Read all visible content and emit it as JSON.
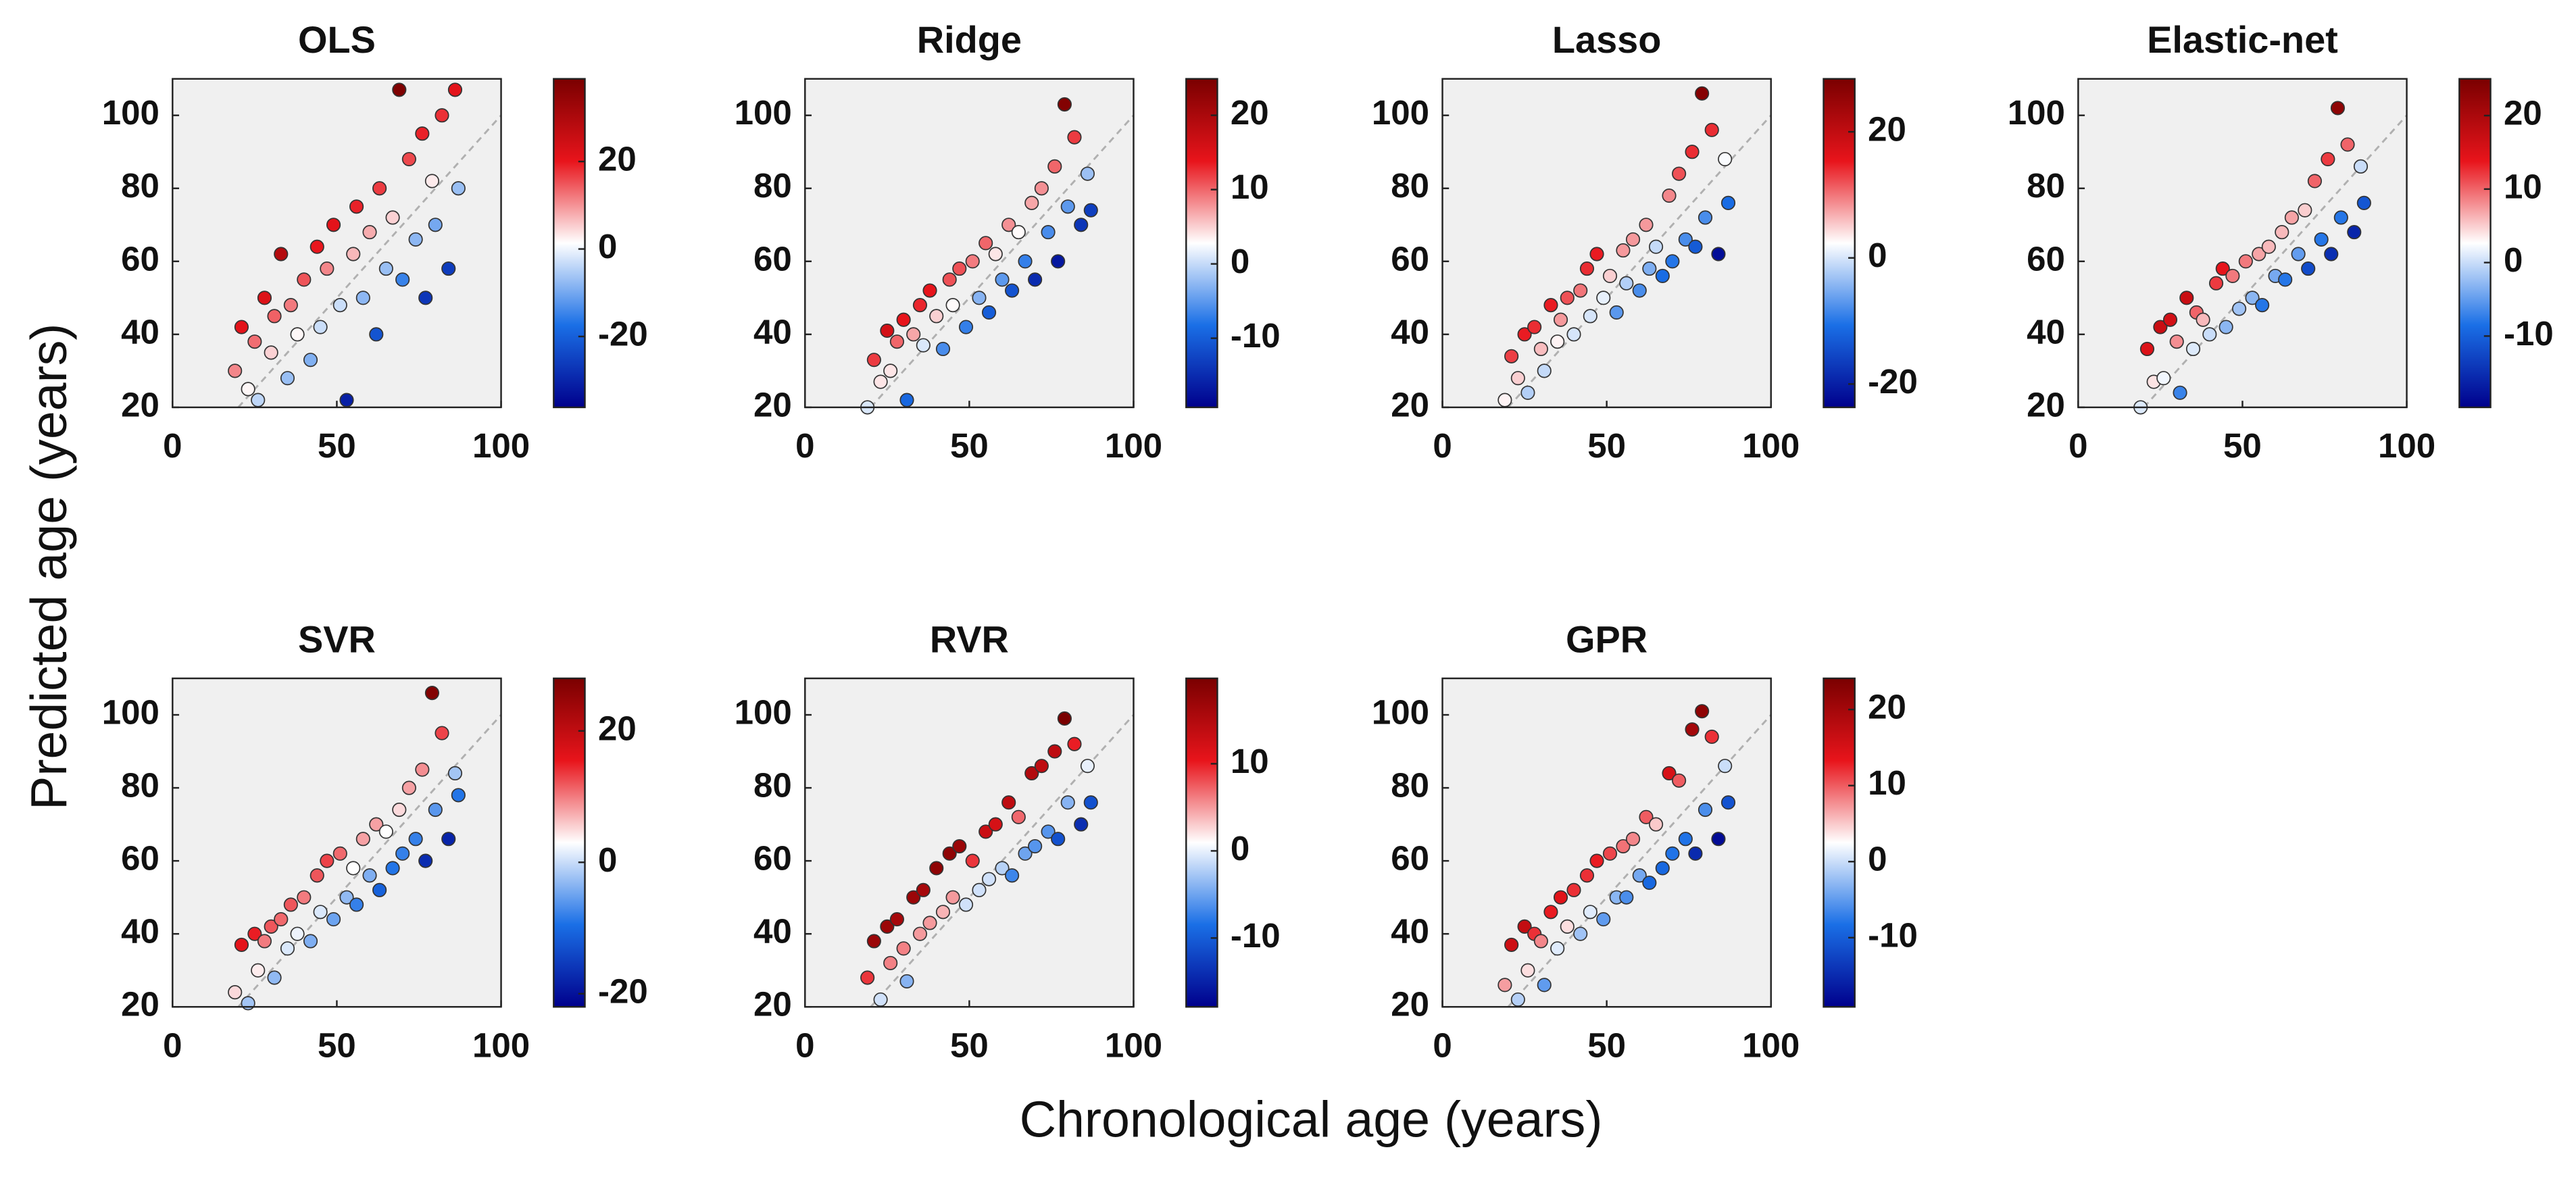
{
  "figure": {
    "ylabel": "Predicted age (years)",
    "xlabel": "Chronological age (years)"
  },
  "chart_data": [
    {
      "type": "scatter",
      "title": "OLS",
      "x": [
        19,
        21,
        23,
        25,
        26,
        28,
        30,
        31,
        33,
        35,
        36,
        38,
        40,
        42,
        44,
        45,
        47,
        49,
        51,
        53,
        55,
        56,
        58,
        60,
        62,
        63,
        65,
        67,
        69,
        70,
        72,
        74,
        76,
        77,
        79,
        80,
        82,
        84,
        86,
        87
      ],
      "values": [
        30,
        42,
        25,
        38,
        22,
        50,
        35,
        45,
        62,
        28,
        48,
        40,
        55,
        33,
        64,
        42,
        58,
        70,
        48,
        22,
        62,
        75,
        50,
        68,
        40,
        80,
        58,
        72,
        107,
        55,
        88,
        66,
        95,
        50,
        82,
        70,
        100,
        58,
        107,
        80
      ],
      "xlim": [
        0,
        100
      ],
      "ylim": [
        20,
        110
      ],
      "xticks": [
        0,
        50,
        100
      ],
      "yticks": [
        20,
        40,
        60,
        80,
        100
      ],
      "clim": [
        -36.2,
        38.9
      ],
      "cticks": [
        -20,
        0,
        20
      ],
      "colormap": [
        "#00008c",
        "#1a6fe6",
        "#ffffff",
        "#e8141b",
        "#7a0000"
      ],
      "identity_line": true
    },
    {
      "type": "scatter",
      "title": "Ridge",
      "x": [
        19,
        21,
        23,
        25,
        26,
        28,
        30,
        31,
        33,
        35,
        36,
        38,
        40,
        42,
        44,
        45,
        47,
        49,
        51,
        53,
        55,
        56,
        58,
        60,
        62,
        63,
        65,
        67,
        69,
        70,
        72,
        74,
        76,
        77,
        79,
        80,
        82,
        84,
        86,
        87
      ],
      "values": [
        20,
        33,
        27,
        41,
        30,
        38,
        44,
        22,
        40,
        48,
        37,
        52,
        45,
        36,
        55,
        48,
        58,
        42,
        60,
        50,
        65,
        46,
        62,
        55,
        70,
        52,
        68,
        60,
        76,
        55,
        80,
        68,
        86,
        60,
        103,
        75,
        94,
        70,
        84,
        74
      ],
      "xlim": [
        0,
        100
      ],
      "ylim": [
        20,
        110
      ],
      "xticks": [
        0,
        50,
        100
      ],
      "yticks": [
        20,
        40,
        60,
        80,
        100
      ],
      "clim": [
        -19.3,
        24.9
      ],
      "cticks": [
        -10,
        0,
        10,
        20
      ],
      "colormap": [
        "#00008c",
        "#1a6fe6",
        "#ffffff",
        "#e8141b",
        "#7a0000"
      ],
      "identity_line": true
    },
    {
      "type": "scatter",
      "title": "Lasso",
      "x": [
        19,
        21,
        23,
        25,
        26,
        28,
        30,
        31,
        33,
        35,
        36,
        38,
        40,
        42,
        44,
        45,
        47,
        49,
        51,
        53,
        55,
        56,
        58,
        60,
        62,
        63,
        65,
        67,
        69,
        70,
        72,
        74,
        76,
        77,
        79,
        80,
        82,
        84,
        86,
        87
      ],
      "values": [
        22,
        34,
        28,
        40,
        24,
        42,
        36,
        30,
        48,
        38,
        44,
        50,
        40,
        52,
        58,
        45,
        62,
        50,
        56,
        46,
        63,
        54,
        66,
        52,
        70,
        58,
        64,
        56,
        78,
        60,
        84,
        66,
        90,
        64,
        106,
        72,
        96,
        62,
        88,
        76
      ],
      "xlim": [
        0,
        100
      ],
      "ylim": [
        20,
        110
      ],
      "xticks": [
        0,
        50,
        100
      ],
      "yticks": [
        20,
        40,
        60,
        80,
        100
      ],
      "clim": [
        -23.7,
        28.4
      ],
      "cticks": [
        -20,
        0,
        20
      ],
      "colormap": [
        "#00008c",
        "#1a6fe6",
        "#ffffff",
        "#e8141b",
        "#7a0000"
      ],
      "identity_line": true
    },
    {
      "type": "scatter",
      "title": "Elastic-net",
      "x": [
        19,
        21,
        23,
        25,
        26,
        28,
        30,
        31,
        33,
        35,
        36,
        38,
        40,
        42,
        44,
        45,
        47,
        49,
        51,
        53,
        55,
        56,
        58,
        60,
        62,
        63,
        65,
        67,
        69,
        70,
        72,
        74,
        76,
        77,
        79,
        80,
        82,
        84,
        86,
        87
      ],
      "values": [
        20,
        36,
        27,
        42,
        28,
        44,
        38,
        24,
        50,
        36,
        46,
        44,
        40,
        54,
        58,
        42,
        56,
        47,
        60,
        50,
        62,
        48,
        64,
        56,
        68,
        55,
        72,
        62,
        74,
        58,
        82,
        66,
        88,
        62,
        102,
        72,
        92,
        68,
        86,
        76
      ],
      "xlim": [
        0,
        100
      ],
      "ylim": [
        20,
        110
      ],
      "xticks": [
        0,
        50,
        100
      ],
      "yticks": [
        20,
        40,
        60,
        80,
        100
      ],
      "clim": [
        -19.7,
        25
      ],
      "cticks": [
        -10,
        0,
        10,
        20
      ],
      "colormap": [
        "#00008c",
        "#1a6fe6",
        "#ffffff",
        "#e8141b",
        "#7a0000"
      ],
      "identity_line": true
    },
    {
      "type": "scatter",
      "title": "SVR",
      "x": [
        19,
        21,
        23,
        25,
        26,
        28,
        30,
        31,
        33,
        35,
        36,
        38,
        40,
        42,
        44,
        45,
        47,
        49,
        51,
        53,
        55,
        56,
        58,
        60,
        62,
        63,
        65,
        67,
        69,
        70,
        72,
        74,
        76,
        77,
        79,
        80,
        82,
        84,
        86,
        87
      ],
      "values": [
        24,
        37,
        21,
        40,
        30,
        38,
        42,
        28,
        44,
        36,
        48,
        40,
        50,
        38,
        56,
        46,
        60,
        44,
        62,
        50,
        58,
        48,
        66,
        56,
        70,
        52,
        68,
        58,
        74,
        62,
        80,
        66,
        85,
        60,
        106,
        74,
        95,
        66,
        84,
        78
      ],
      "xlim": [
        0,
        100
      ],
      "ylim": [
        20,
        110
      ],
      "xticks": [
        0,
        50,
        100
      ],
      "yticks": [
        20,
        40,
        60,
        80,
        100
      ],
      "clim": [
        -22,
        28
      ],
      "cticks": [
        -20,
        0,
        20
      ],
      "colormap": [
        "#00008c",
        "#1a6fe6",
        "#ffffff",
        "#e8141b",
        "#7a0000"
      ],
      "identity_line": true
    },
    {
      "type": "scatter",
      "title": "RVR",
      "x": [
        19,
        21,
        23,
        25,
        26,
        28,
        30,
        31,
        33,
        35,
        36,
        38,
        40,
        42,
        44,
        45,
        47,
        49,
        51,
        53,
        55,
        56,
        58,
        60,
        62,
        63,
        65,
        67,
        69,
        70,
        72,
        74,
        76,
        77,
        79,
        80,
        82,
        84,
        86,
        87
      ],
      "values": [
        28,
        38,
        22,
        42,
        32,
        44,
        36,
        27,
        50,
        40,
        52,
        43,
        58,
        46,
        62,
        50,
        64,
        48,
        60,
        52,
        68,
        55,
        70,
        58,
        76,
        56,
        72,
        62,
        84,
        64,
        86,
        68,
        90,
        66,
        99,
        76,
        92,
        70,
        86,
        76
      ],
      "xlim": [
        0,
        100
      ],
      "ylim": [
        20,
        110
      ],
      "xticks": [
        0,
        50,
        100
      ],
      "yticks": [
        20,
        40,
        60,
        80,
        100
      ],
      "clim": [
        -17.9,
        19.8
      ],
      "cticks": [
        -10,
        0,
        10
      ],
      "colormap": [
        "#00008c",
        "#1a6fe6",
        "#ffffff",
        "#e8141b",
        "#7a0000"
      ],
      "identity_line": true
    },
    {
      "type": "scatter",
      "title": "GPR",
      "x": [
        19,
        21,
        23,
        25,
        26,
        28,
        30,
        31,
        33,
        35,
        36,
        38,
        40,
        42,
        44,
        45,
        47,
        49,
        51,
        53,
        55,
        56,
        58,
        60,
        62,
        63,
        65,
        67,
        69,
        70,
        72,
        74,
        76,
        77,
        79,
        80,
        82,
        84,
        86,
        87
      ],
      "values": [
        26,
        37,
        22,
        42,
        30,
        40,
        38,
        26,
        46,
        36,
        50,
        42,
        52,
        40,
        56,
        46,
        60,
        44,
        62,
        50,
        64,
        50,
        66,
        56,
        72,
        54,
        70,
        58,
        84,
        62,
        82,
        66,
        96,
        62,
        101,
        74,
        94,
        66,
        86,
        76
      ],
      "xlim": [
        0,
        100
      ],
      "ylim": [
        20,
        110
      ],
      "xticks": [
        0,
        50,
        100
      ],
      "yticks": [
        20,
        40,
        60,
        80,
        100
      ],
      "clim": [
        -19.1,
        24.1
      ],
      "cticks": [
        -10,
        0,
        10,
        20
      ],
      "colormap": [
        "#00008c",
        "#1a6fe6",
        "#ffffff",
        "#e8141b",
        "#7a0000"
      ],
      "identity_line": true
    }
  ]
}
